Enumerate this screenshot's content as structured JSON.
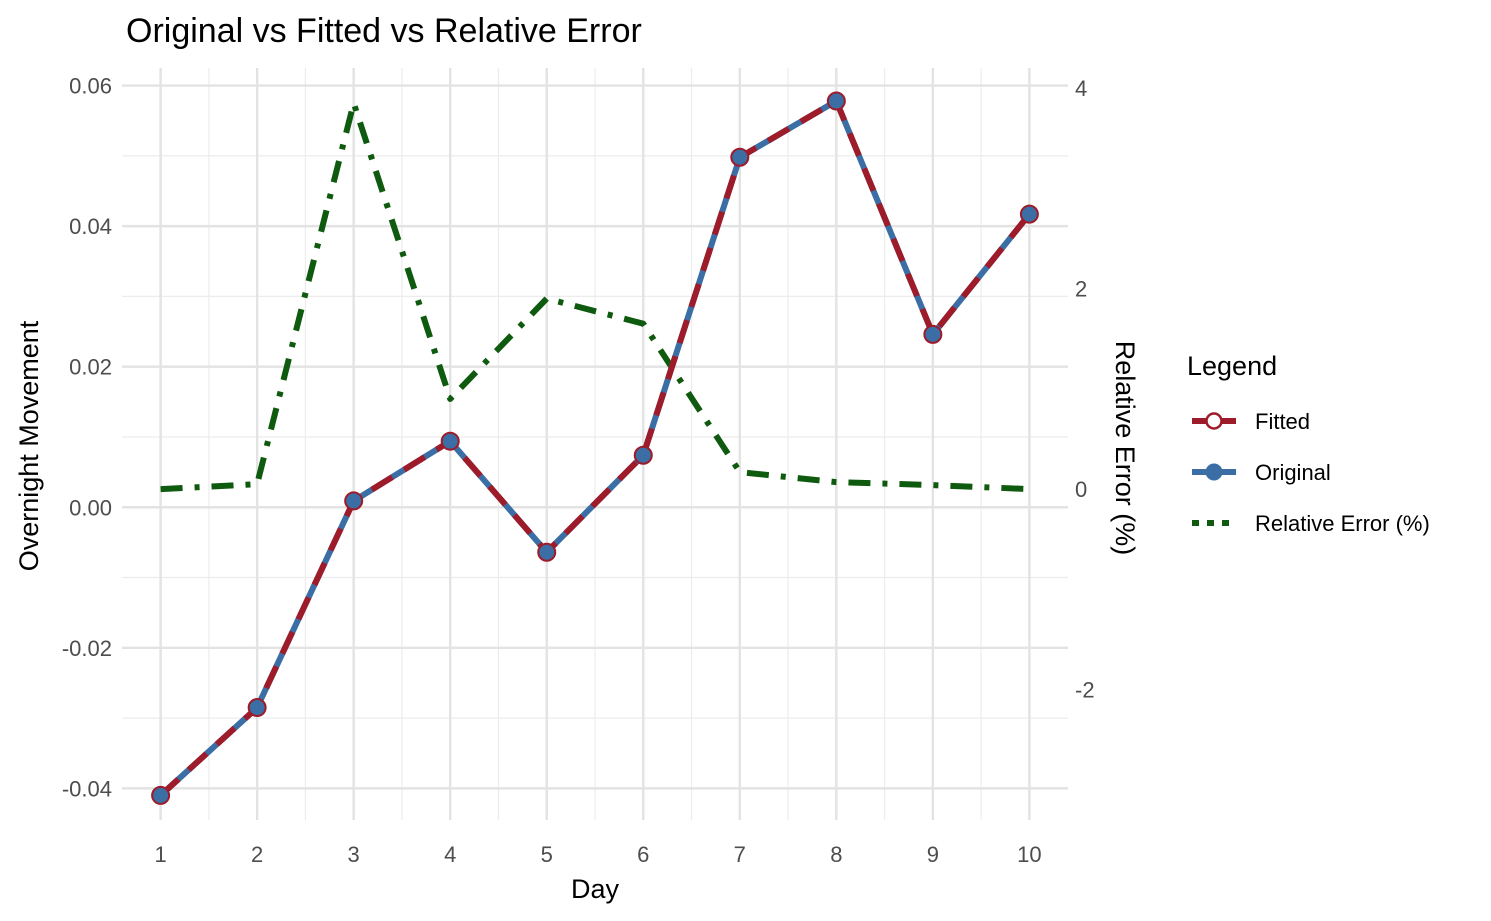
{
  "chart_data": {
    "type": "line",
    "title": "Original vs Fitted vs Relative Error",
    "xlabel": "Day",
    "ylabel": "Overnight Movement",
    "y2label": "Relative Error (%)",
    "x": [
      1,
      2,
      3,
      4,
      5,
      6,
      7,
      8,
      9,
      10
    ],
    "xlim": [
      0.6,
      10.4
    ],
    "ylim": [
      -0.0445,
      0.0625
    ],
    "y2lim": [
      -3.3,
      4.2
    ],
    "yticks": [
      -0.04,
      -0.02,
      0.0,
      0.02,
      0.04,
      0.06
    ],
    "ytick_labels": [
      "-0.04",
      "-0.02",
      "0.00",
      "0.02",
      "0.04",
      "0.06"
    ],
    "y2ticks": [
      -2,
      0,
      2,
      4
    ],
    "y2tick_labels": [
      "-2",
      "0",
      "2",
      "4"
    ],
    "xtick_labels": [
      "1",
      "2",
      "3",
      "4",
      "5",
      "6",
      "7",
      "8",
      "9",
      "10"
    ],
    "grid": true,
    "legend_position": "right",
    "legend_title": "Legend",
    "series": [
      {
        "name": "Fitted",
        "axis": "left",
        "color": "#9e1b2a",
        "style": "dashed",
        "marker": "open-circle",
        "values": [
          -0.041,
          -0.0285,
          0.0009,
          0.0094,
          -0.0064,
          0.0074,
          0.0498,
          0.0578,
          0.0246,
          0.0417
        ]
      },
      {
        "name": "Original",
        "axis": "left",
        "color": "#3a6ea5",
        "style": "solid",
        "marker": "filled-circle",
        "values": [
          -0.041,
          -0.0285,
          0.0009,
          0.0094,
          -0.0064,
          0.0074,
          0.0498,
          0.0578,
          0.0246,
          0.0417
        ]
      },
      {
        "name": "Relative Error (%)",
        "axis": "right",
        "color": "#0e5a0e",
        "style": "dotdash",
        "marker": "none",
        "values": [
          0.0,
          0.05,
          3.85,
          0.9,
          1.9,
          1.65,
          0.17,
          0.07,
          0.04,
          0.0
        ]
      }
    ]
  }
}
